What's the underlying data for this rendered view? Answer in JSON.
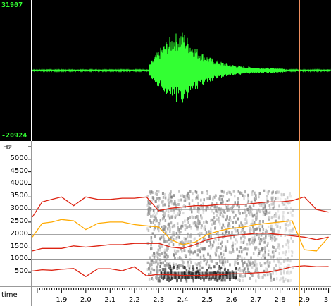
{
  "waveform": {
    "max_label": "31907",
    "min_label": "-20924",
    "trace_color": "#33ff33",
    "cursor_color": "#ff9966"
  },
  "spectrogram": {
    "axis_unit": "Hz",
    "y_ticks": [
      {
        "value": 500,
        "label": "500"
      },
      {
        "value": 1000,
        "label": "1000"
      },
      {
        "value": 1500,
        "label": "1500"
      },
      {
        "value": 2000,
        "label": "2000"
      },
      {
        "value": 2500,
        "label": "2500"
      },
      {
        "value": 3000,
        "label": "3000"
      },
      {
        "value": 3500,
        "label": "3500"
      },
      {
        "value": 4000,
        "label": "4000"
      },
      {
        "value": 4500,
        "label": "4500"
      },
      {
        "value": 5000,
        "label": "5000"
      }
    ],
    "gridlines_hz": [
      1000,
      2000,
      3000
    ],
    "y_range": [
      0,
      5500
    ],
    "cursor_color": "#ffbb33",
    "formant_colors": {
      "f1": "#dd2211",
      "f2": "#ffaa00",
      "f3": "#dd2211",
      "f4": "#dd2211"
    },
    "formants_time": [
      1.78,
      1.82,
      1.86,
      1.9,
      1.95,
      2.0,
      2.05,
      2.1,
      2.15,
      2.2,
      2.25,
      2.3,
      2.35,
      2.4,
      2.45,
      2.5,
      2.55,
      2.6,
      2.65,
      2.7,
      2.75,
      2.8,
      2.85,
      2.9,
      2.95,
      3.0
    ],
    "f1": [
      550,
      600,
      580,
      620,
      650,
      330,
      640,
      640,
      560,
      720,
      360,
      420,
      400,
      380,
      370,
      390,
      400,
      440,
      440,
      480,
      500,
      600,
      720,
      760,
      720,
      730
    ],
    "f2": [
      1900,
      2450,
      2500,
      2600,
      2550,
      2200,
      2450,
      2500,
      2500,
      2400,
      2350,
      2300,
      1800,
      1600,
      1700,
      2000,
      2150,
      2250,
      2300,
      2400,
      2450,
      2500,
      2550,
      1400,
      1350,
      1900
    ],
    "f3": [
      1350,
      1450,
      1450,
      1450,
      1550,
      1500,
      1550,
      1600,
      1600,
      1650,
      1650,
      1650,
      1500,
      1450,
      1600,
      1800,
      1900,
      1950,
      2000,
      2050,
      2050,
      2000,
      1950,
      1900,
      1800,
      1900
    ],
    "f4": [
      2700,
      3300,
      3400,
      3500,
      3150,
      3500,
      3400,
      3400,
      3450,
      3450,
      3500,
      2950,
      3050,
      3100,
      3150,
      3150,
      3200,
      3200,
      3200,
      3250,
      3300,
      3300,
      3350,
      3500,
      3000,
      2900
    ]
  },
  "time_axis": {
    "label": "time",
    "range": [
      1.78,
      3.01
    ],
    "cursor_time": 2.88,
    "ticks": [
      {
        "value": 1.9,
        "label": "1.9"
      },
      {
        "value": 2.0,
        "label": "2.0"
      },
      {
        "value": 2.1,
        "label": "2.1"
      },
      {
        "value": 2.2,
        "label": "2.2"
      },
      {
        "value": 2.3,
        "label": "2.3"
      },
      {
        "value": 2.4,
        "label": "2.4"
      },
      {
        "value": 2.5,
        "label": "2.5"
      },
      {
        "value": 2.6,
        "label": "2.6"
      },
      {
        "value": 2.7,
        "label": "2.7"
      },
      {
        "value": 2.8,
        "label": "2.8"
      },
      {
        "value": 2.9,
        "label": "2.9"
      },
      {
        "value": 3.0,
        "label": "3"
      }
    ]
  }
}
